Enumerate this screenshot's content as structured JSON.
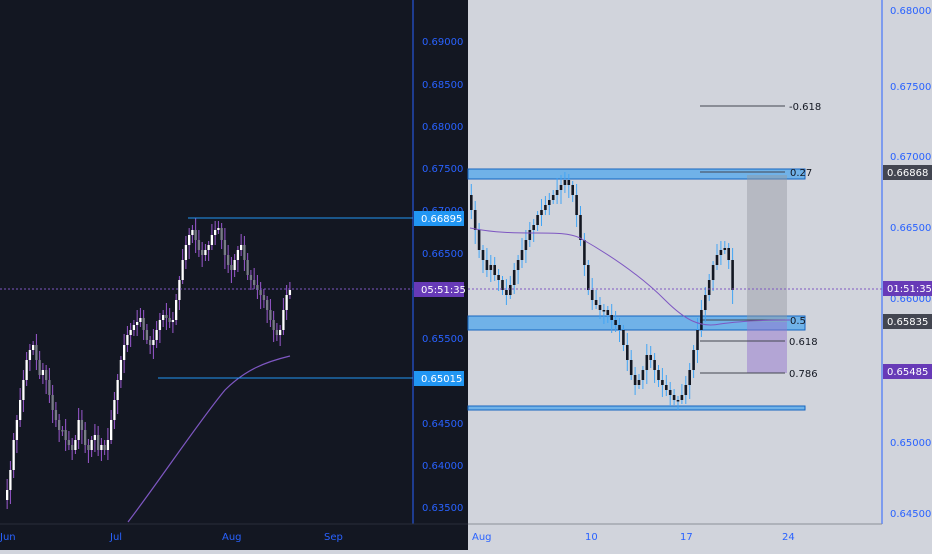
{
  "colors": {
    "left_bg": "#131722",
    "right_bg": "#d1d4dc",
    "axis_text": "#2962ff",
    "up_left": "#ffffff",
    "down_left": "#787b86",
    "wick_left": "#9b59d0",
    "candle_right": "#131722",
    "wick_right": "#42a5f5",
    "zone_fill": "#2196f3",
    "ma_line": "#7e57c2",
    "price_badge": "#673ab7",
    "level_badge": "#2196f3",
    "gray_badge": "#434651"
  },
  "left_chart": {
    "y_axis_labels": [
      "0.69000",
      "0.68500",
      "0.68000",
      "0.67500",
      "0.67000",
      "0.66500",
      "0.65500",
      "0.64500",
      "0.64000",
      "0.63500"
    ],
    "x_axis_labels": [
      "Jun",
      "Jul",
      "Aug",
      "Sep"
    ],
    "badge_resistance": "0.66895",
    "badge_countdown": "05:51:35",
    "badge_support": "0.65015"
  },
  "right_chart": {
    "y_axis_labels": [
      "0.68000",
      "0.67500",
      "0.67000",
      "0.66500",
      "0.66000",
      "0.65000",
      "0.64500"
    ],
    "x_axis_labels": [
      "Aug",
      "10",
      "17",
      "24"
    ],
    "badge_upper": "0.66868",
    "badge_countdown": "01:51:35",
    "badge_mid": "0.65835",
    "badge_lower": "0.65485",
    "fib_labels": {
      "f_neg618": "-0.618",
      "f_027": "0.27",
      "f_05": "0.5",
      "f_0618": "0.618",
      "f_0786": "0.786"
    }
  }
}
